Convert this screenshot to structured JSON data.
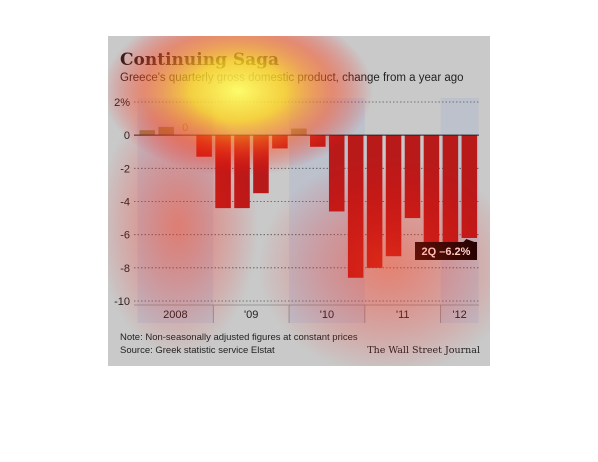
{
  "chart_data": {
    "type": "bar",
    "title": "Continuing Saga",
    "subtitle": "Greece's quarterly gross domestic product, change from a year ago",
    "categories": [
      "2008 Q1",
      "2008 Q2",
      "2008 Q3",
      "2008 Q4",
      "2009 Q1",
      "2009 Q2",
      "2009 Q3",
      "2009 Q4",
      "2010 Q1",
      "2010 Q2",
      "2010 Q3",
      "2010 Q4",
      "2011 Q1",
      "2011 Q2",
      "2011 Q3",
      "2011 Q4",
      "2012 Q1",
      "2012 Q2"
    ],
    "values": [
      0.3,
      0.5,
      0,
      -1.3,
      -4.4,
      -4.4,
      -3.5,
      -0.8,
      0.4,
      -0.7,
      -4.6,
      -8.6,
      -8.0,
      -7.3,
      -5.0,
      -7.5,
      -6.5,
      -6.2
    ],
    "ylim": [
      -10,
      2
    ],
    "yticks": [
      {
        "value": 2,
        "label": "2%"
      },
      {
        "value": 0,
        "label": "0"
      },
      {
        "value": -2,
        "label": "-2"
      },
      {
        "value": -4,
        "label": "-4"
      },
      {
        "value": -6,
        "label": "-6"
      },
      {
        "value": -8,
        "label": "-8"
      },
      {
        "value": -10,
        "label": "-10"
      }
    ],
    "year_labels": [
      "2008",
      "'09",
      "'10",
      "'11",
      "'12"
    ],
    "zero_label": "0",
    "annotation": "2Q –6.2%",
    "grid": true,
    "colors": {
      "positive": "#8a8c5e",
      "negative": "#b81a1a",
      "band_shade": "#bcc1cc",
      "zero_label": "#8a8c5e"
    },
    "note": "Note: Non-seasonally adjusted figures at constant prices",
    "source": "Source: Greek statistic service Elstat",
    "brand": "The Wall Street Journal"
  }
}
